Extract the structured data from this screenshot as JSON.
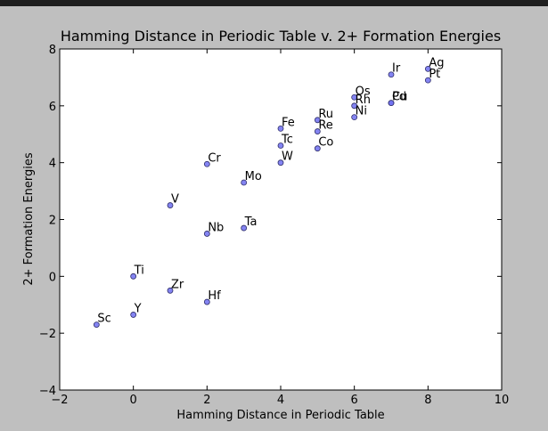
{
  "chart_data": {
    "type": "scatter",
    "title": "Hamming Distance in Periodic Table v. 2+ Formation Energies",
    "xlabel": "Hamming Distance in Periodic Table",
    "ylabel": "2+ Formation Energies",
    "xlim": [
      -2,
      10
    ],
    "ylim": [
      -4,
      8
    ],
    "xticks": [
      -2,
      0,
      2,
      4,
      6,
      8,
      10
    ],
    "yticks": [
      -4,
      -2,
      0,
      2,
      4,
      6,
      8
    ],
    "grid": false,
    "legend": "none",
    "colors": {
      "marker_fill": "#6e6ef0",
      "marker_edge": "#2f2f6a",
      "background": "#bfbfbf",
      "plot_area": "#ffffff"
    },
    "points": [
      {
        "label": "Sc",
        "x": -1,
        "y": -1.7
      },
      {
        "label": "Y",
        "x": 0,
        "y": -1.35
      },
      {
        "label": "Ti",
        "x": 0,
        "y": 0.0
      },
      {
        "label": "Zr",
        "x": 1,
        "y": -0.5
      },
      {
        "label": "V",
        "x": 1,
        "y": 2.5
      },
      {
        "label": "Hf",
        "x": 2,
        "y": -0.9
      },
      {
        "label": "Nb",
        "x": 2,
        "y": 1.5
      },
      {
        "label": "Cr",
        "x": 2,
        "y": 3.95
      },
      {
        "label": "Ta",
        "x": 3,
        "y": 1.7
      },
      {
        "label": "Mo",
        "x": 3,
        "y": 3.3
      },
      {
        "label": "W",
        "x": 4,
        "y": 4.0
      },
      {
        "label": "Tc",
        "x": 4,
        "y": 4.6
      },
      {
        "label": "Fe",
        "x": 4,
        "y": 5.2
      },
      {
        "label": "Co",
        "x": 5,
        "y": 4.5
      },
      {
        "label": "Re",
        "x": 5,
        "y": 5.1
      },
      {
        "label": "Ru",
        "x": 5,
        "y": 5.5
      },
      {
        "label": "Ni",
        "x": 6,
        "y": 5.6
      },
      {
        "label": "Rh",
        "x": 6,
        "y": 6.0
      },
      {
        "label": "Os",
        "x": 6,
        "y": 6.3
      },
      {
        "label": "Pd",
        "x": 7,
        "y": 6.1
      },
      {
        "label": "Cu",
        "x": 7,
        "y": 6.1
      },
      {
        "label": "Ir",
        "x": 7,
        "y": 7.1
      },
      {
        "label": "Pt",
        "x": 8,
        "y": 6.9
      },
      {
        "label": "Ag",
        "x": 8,
        "y": 7.3
      }
    ]
  }
}
